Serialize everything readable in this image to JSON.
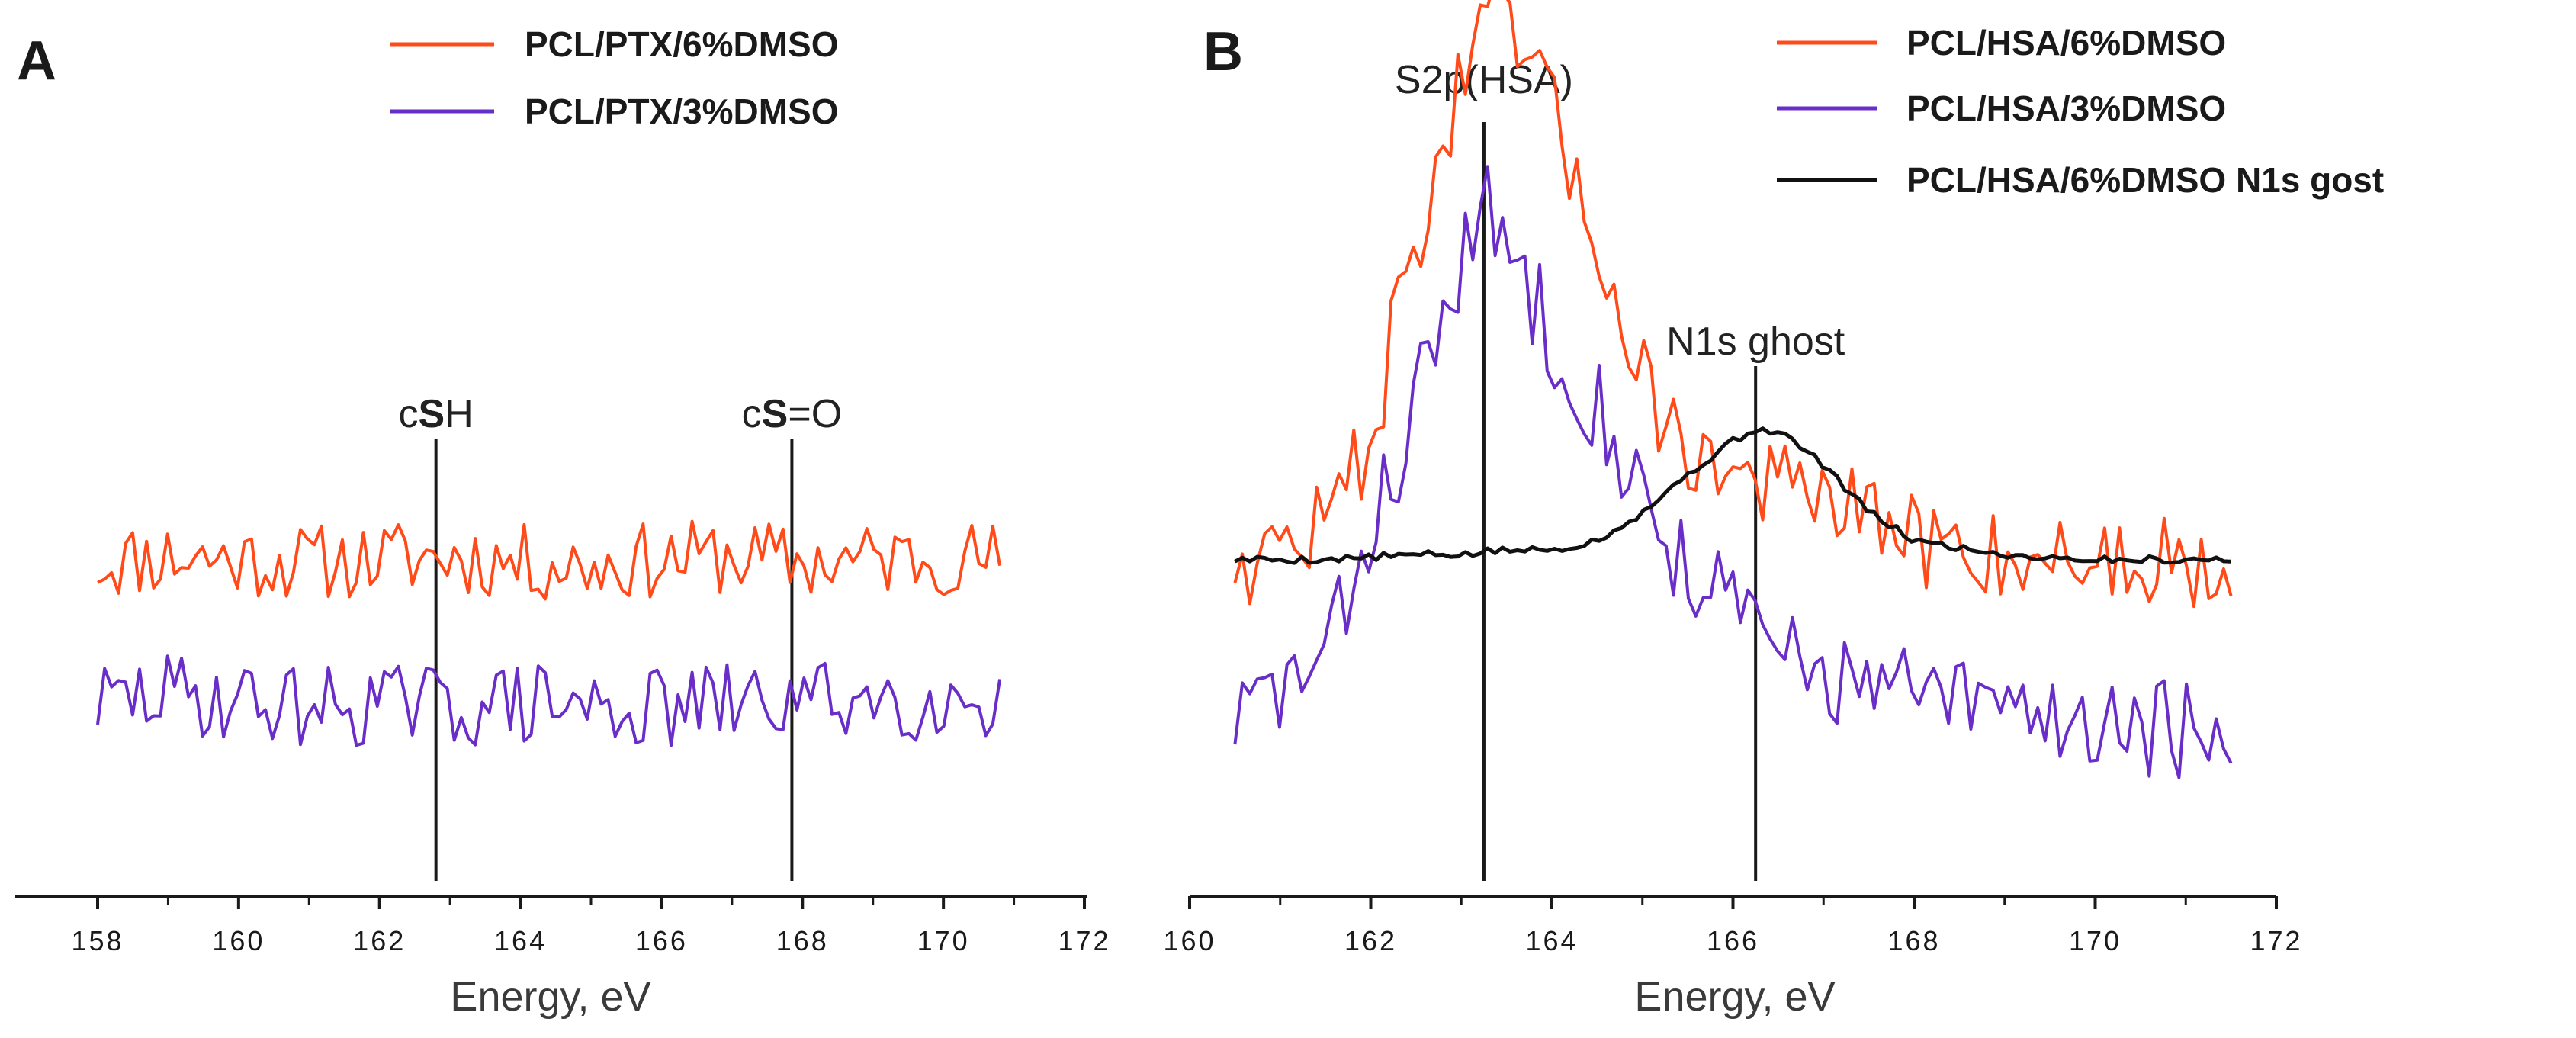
{
  "chart_data": [
    {
      "panel": "A",
      "type": "line",
      "title": "",
      "xlabel": "Energy, eV",
      "ylabel": "",
      "xlim": [
        157,
        172
      ],
      "xticks": [
        "158",
        "160",
        "162",
        "164",
        "166",
        "168",
        "170",
        "172"
      ],
      "legend_position": "top",
      "series": [
        {
          "name": "PCL/PTX/6%DMSO",
          "color": "#ff4a1a",
          "noise": 0.12,
          "seed": 11,
          "x": [
            158,
            159,
            160,
            161,
            162,
            163,
            164,
            165,
            166,
            167,
            168,
            169,
            170,
            170.8
          ],
          "y": [
            0.72,
            0.74,
            0.73,
            0.72,
            0.73,
            0.74,
            0.72,
            0.71,
            0.73,
            0.74,
            0.72,
            0.73,
            0.74,
            0.73
          ]
        },
        {
          "name": "PCL/PTX/3%DMSO",
          "color": "#6a2ec8",
          "noise": 0.13,
          "seed": 29,
          "x": [
            158,
            159,
            160,
            161,
            162,
            163,
            164,
            165,
            166,
            167,
            168,
            169,
            170,
            170.8
          ],
          "y": [
            0.28,
            0.31,
            0.29,
            0.27,
            0.28,
            0.27,
            0.28,
            0.27,
            0.26,
            0.28,
            0.29,
            0.3,
            0.29,
            0.3
          ]
        }
      ],
      "vlines": [
        {
          "x": 162.8,
          "label_prefix": "c",
          "label_bold": "S",
          "label_suffix": "H"
        },
        {
          "x": 167.85,
          "label_prefix": "c",
          "label_bold": "S",
          "label_suffix": "=O"
        }
      ]
    },
    {
      "panel": "B",
      "type": "line",
      "title": "",
      "xlabel": "Energy, eV",
      "ylabel": "",
      "xlim": [
        160,
        172
      ],
      "xticks": [
        "160",
        "162",
        "164",
        "166",
        "168",
        "170",
        "172"
      ],
      "legend_position": "top-right",
      "series": [
        {
          "name": "PCL/HSA/6%DMSO",
          "color": "#ff4a1a",
          "noise": 0.1,
          "seed": 47,
          "x": [
            160.5,
            161.0,
            161.5,
            162.0,
            162.5,
            163.0,
            163.3,
            163.6,
            164.0,
            164.5,
            165.0,
            165.5,
            166.0,
            166.5,
            167.0,
            167.5,
            168.0,
            169.0,
            170.0,
            171.0,
            171.5
          ],
          "y": [
            0.72,
            0.74,
            0.8,
            0.98,
            1.4,
            1.72,
            1.86,
            1.83,
            1.66,
            1.4,
            1.1,
            0.95,
            0.9,
            0.88,
            0.84,
            0.8,
            0.76,
            0.73,
            0.72,
            0.72,
            0.71
          ]
        },
        {
          "name": "PCL/HSA/3%DMSO",
          "color": "#6a2ec8",
          "noise": 0.11,
          "seed": 83,
          "x": [
            160.5,
            161.0,
            161.5,
            162.0,
            162.5,
            163.0,
            163.3,
            163.6,
            164.0,
            164.5,
            165.0,
            165.5,
            166.0,
            166.5,
            167.0,
            167.5,
            168.0,
            169.0,
            170.0,
            171.0,
            171.5
          ],
          "y": [
            0.38,
            0.45,
            0.5,
            0.78,
            1.05,
            1.35,
            1.45,
            1.35,
            1.2,
            1.05,
            0.85,
            0.7,
            0.62,
            0.52,
            0.48,
            0.45,
            0.43,
            0.4,
            0.38,
            0.36,
            0.25
          ]
        },
        {
          "name": "PCL/HSA/6%DMSO N1s gost",
          "color": "#111111",
          "noise": 0.008,
          "seed": 5,
          "x": [
            160.5,
            161.5,
            162.5,
            163.0,
            163.5,
            164.0,
            164.5,
            165.0,
            165.5,
            166.0,
            166.3,
            166.6,
            167.0,
            167.5,
            168.0,
            169.0,
            170.0,
            171.5
          ],
          "y": [
            0.72,
            0.72,
            0.73,
            0.73,
            0.74,
            0.74,
            0.76,
            0.82,
            0.9,
            0.97,
            1.0,
            0.98,
            0.92,
            0.82,
            0.76,
            0.73,
            0.72,
            0.72
          ]
        }
      ],
      "vlines": [
        {
          "x": 163.25,
          "label": "S2p(HSA)"
        },
        {
          "x": 166.25,
          "label": "N1s ghost"
        }
      ]
    }
  ]
}
